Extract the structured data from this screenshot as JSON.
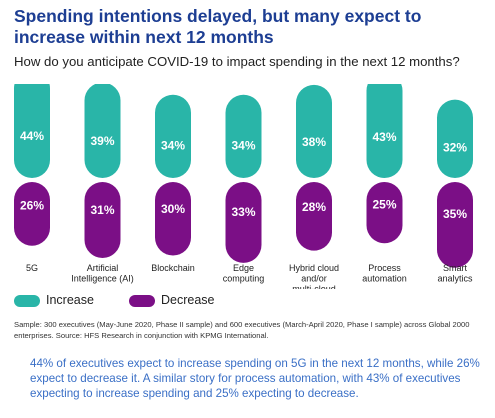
{
  "title": "Spending intentions delayed, but many expect to increase within next 12 months",
  "subtitle": "How do you anticipate COVID-19 to impact spending in the next 12 months?",
  "legend": {
    "increase": "Increase",
    "decrease": "Decrease"
  },
  "source": "Sample: 300 executives (May-June 2020, Phase II sample) and 600 executives (March-April 2020, Phase I sample) across Global 2000 enterprises. Source: HFS Research in conjunction with KPMG International.",
  "callout": "44% of executives expect to increase spending on 5G in the next 12 months, while 26% expect to decrease it. A similar story for process automation, with 43% of executives expecting to increase spending and 25% expecting to decrease.",
  "colors": {
    "increase": "#29b5a8",
    "decrease": "#7b0f86",
    "title": "#1d3e93",
    "callout": "#3a6fc6",
    "label_text": "#ffffff"
  },
  "chart_data": {
    "type": "bar",
    "categories": [
      [
        "5G"
      ],
      [
        "Artificial",
        "Intelligence (AI)"
      ],
      [
        "Blockchain"
      ],
      [
        "Edge",
        "computing"
      ],
      [
        "Hybrid cloud",
        "and/or",
        "multi-cloud"
      ],
      [
        "Process",
        "automation"
      ],
      [
        "Smart",
        "analytics"
      ]
    ],
    "series": [
      {
        "name": "Increase",
        "values": [
          44,
          39,
          34,
          34,
          38,
          43,
          32
        ],
        "labels": [
          "44%",
          "39%",
          "34%",
          "34%",
          "38%",
          "43%",
          "32%"
        ]
      },
      {
        "name": "Decrease",
        "values": [
          26,
          31,
          30,
          33,
          28,
          25,
          35
        ],
        "labels": [
          "26%",
          "31%",
          "30%",
          "33%",
          "28%",
          "25%",
          "35%"
        ]
      }
    ],
    "unit": "%",
    "legend_position": "bottom-left",
    "grid": false
  }
}
